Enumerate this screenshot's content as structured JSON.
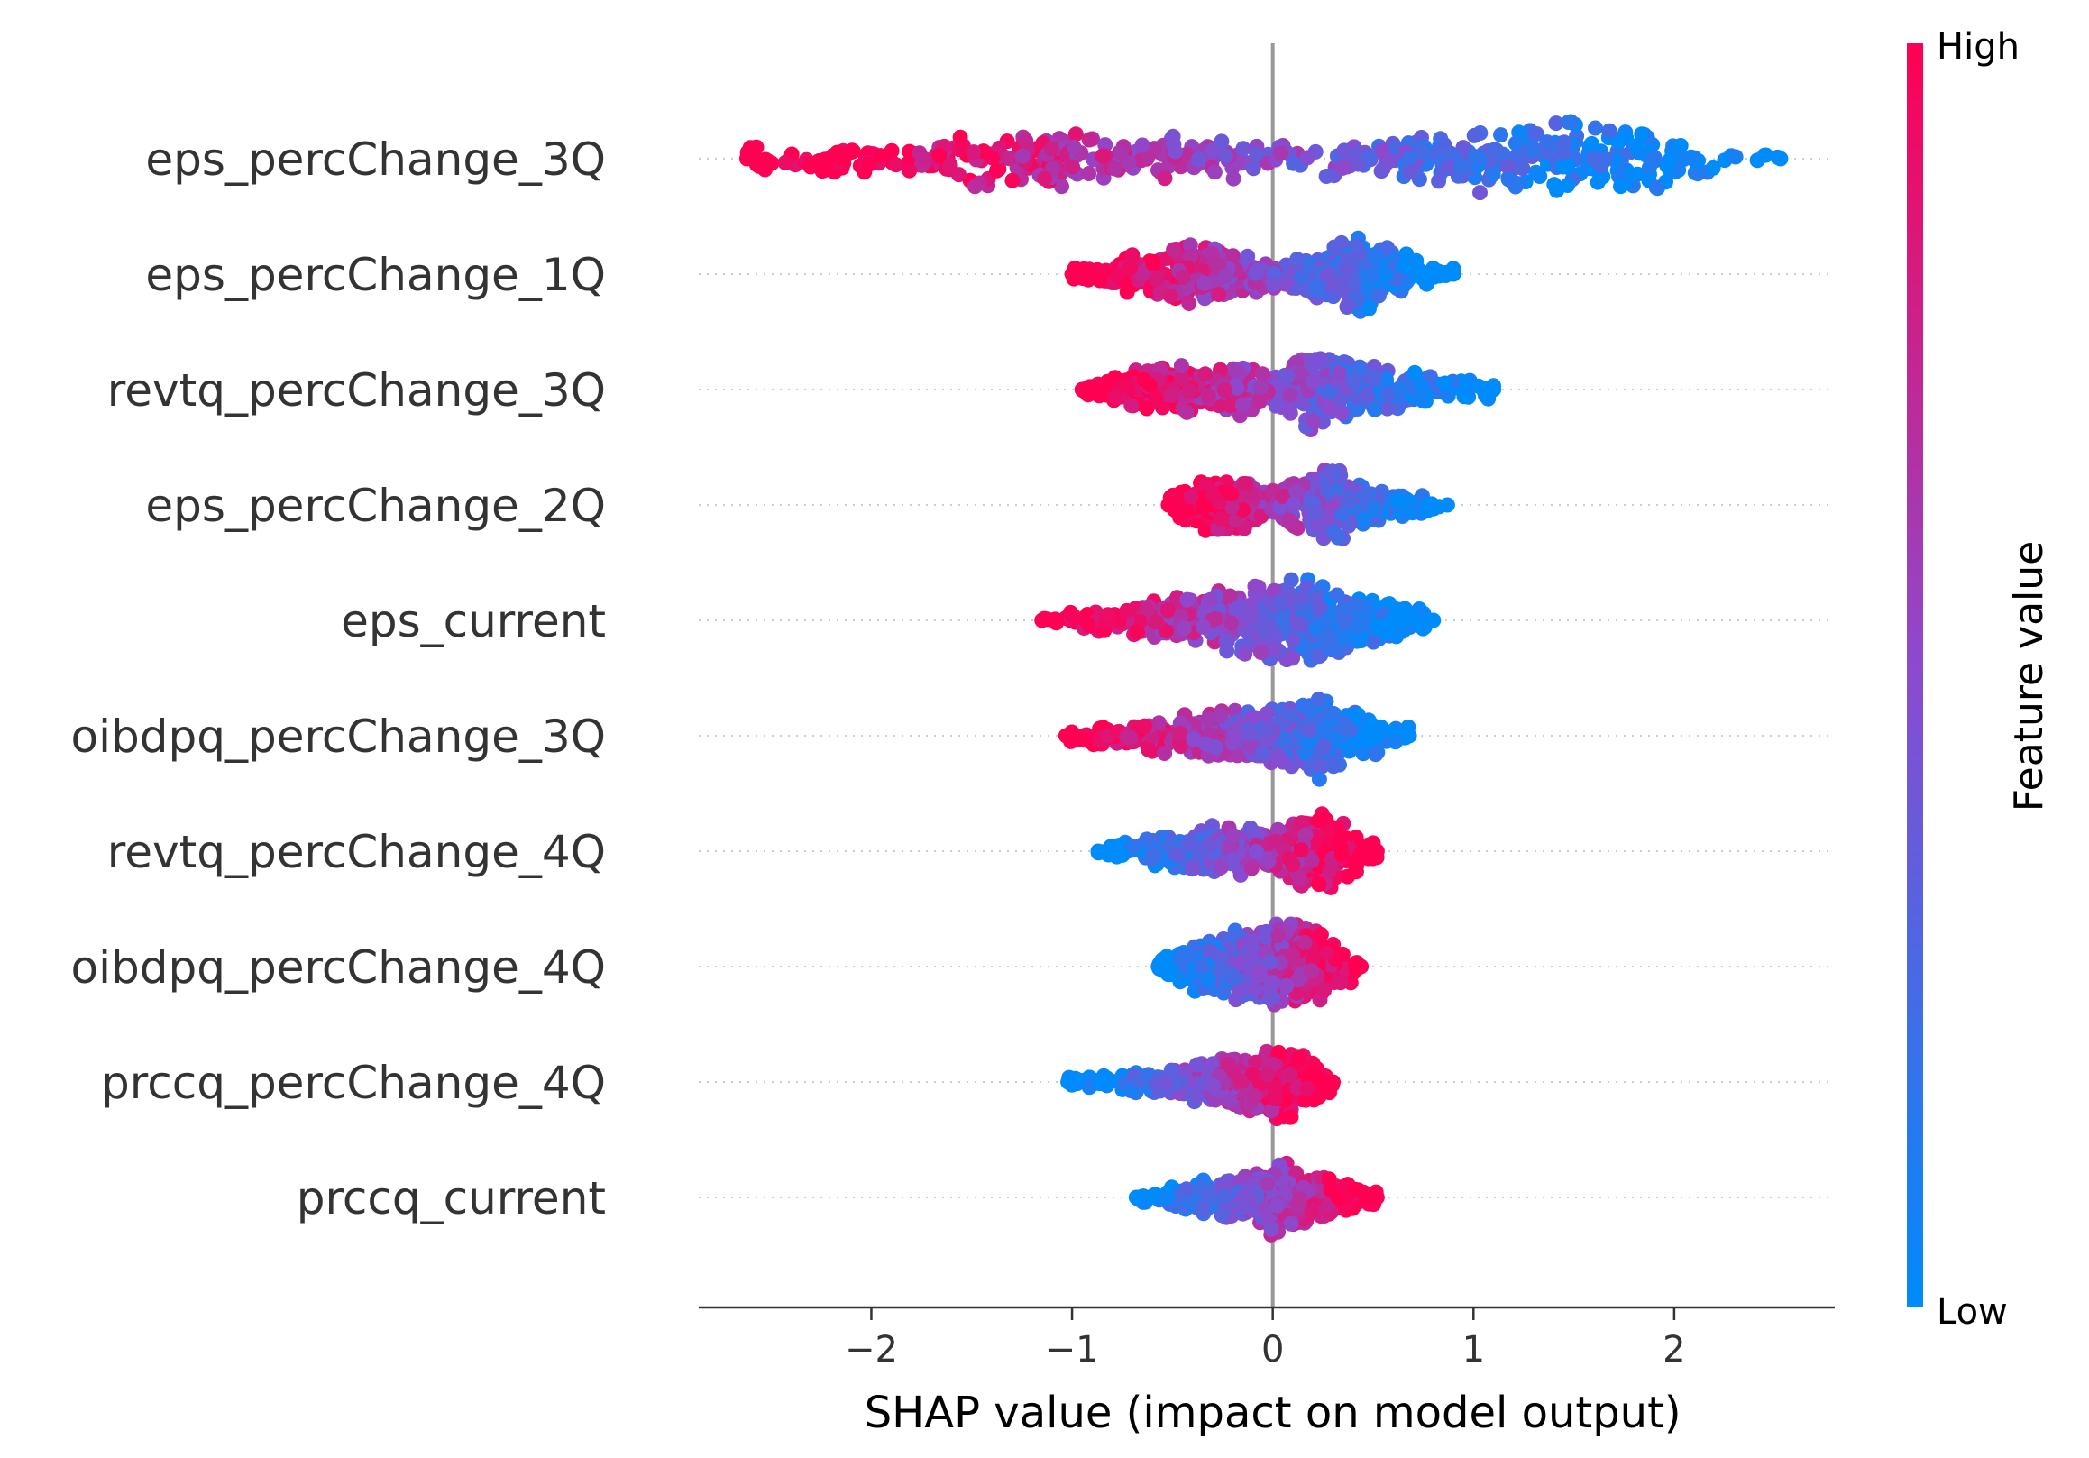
{
  "chart_data": {
    "type": "scatter",
    "subtype": "shap-beeswarm-summary",
    "xlabel": "SHAP value (impact on model output)",
    "xlim": [
      -2.86,
      2.8
    ],
    "xticks": [
      -2,
      -1,
      0,
      1,
      2
    ],
    "xtick_labels": [
      "−2",
      "−1",
      "0",
      "1",
      "2"
    ],
    "zero_line": true,
    "colorbar": {
      "label": "Feature value",
      "high_label": "High",
      "low_label": "Low",
      "high_color": "#ff0052",
      "mid_color": "#8a4bd0",
      "low_color": "#008bfb"
    },
    "features": [
      {
        "name": "eps_percChange_3Q",
        "min": -2.62,
        "max": 2.53,
        "neg_high": true,
        "mass": [
          [
            -2.4,
            0.3
          ],
          [
            -1.6,
            0.6
          ],
          [
            -1.1,
            0.75
          ],
          [
            -0.4,
            0.55
          ],
          [
            0.0,
            0.45
          ],
          [
            0.6,
            0.55
          ],
          [
            1.0,
            0.75
          ],
          [
            1.4,
            1.0
          ],
          [
            1.8,
            0.8
          ],
          [
            2.2,
            0.4
          ],
          [
            2.5,
            0.12
          ]
        ]
      },
      {
        "name": "eps_percChange_1Q",
        "min": -1.0,
        "max": 0.9,
        "neg_high": true,
        "mass": [
          [
            -0.9,
            0.2
          ],
          [
            -0.6,
            0.6
          ],
          [
            -0.5,
            0.75
          ],
          [
            -0.2,
            0.6
          ],
          [
            0.05,
            0.3
          ],
          [
            0.25,
            0.7
          ],
          [
            0.45,
            1.0
          ],
          [
            0.6,
            0.6
          ],
          [
            0.8,
            0.25
          ]
        ]
      },
      {
        "name": "revtq_percChange_3Q",
        "min": -0.95,
        "max": 1.1,
        "neg_high": true,
        "mass": [
          [
            -0.9,
            0.25
          ],
          [
            -0.55,
            0.5
          ],
          [
            -0.2,
            0.6
          ],
          [
            0.0,
            0.35
          ],
          [
            0.2,
            0.9
          ],
          [
            0.45,
            0.6
          ],
          [
            0.7,
            0.4
          ],
          [
            1.0,
            0.2
          ]
        ]
      },
      {
        "name": "eps_percChange_2Q",
        "min": -0.52,
        "max": 0.87,
        "neg_high": true,
        "mass": [
          [
            -0.5,
            0.25
          ],
          [
            -0.3,
            0.7
          ],
          [
            -0.15,
            0.65
          ],
          [
            0.0,
            0.35
          ],
          [
            0.2,
            0.75
          ],
          [
            0.3,
            1.0
          ],
          [
            0.45,
            0.5
          ],
          [
            0.7,
            0.3
          ],
          [
            0.85,
            0.15
          ]
        ]
      },
      {
        "name": "eps_current",
        "min": -1.15,
        "max": 0.8,
        "neg_high": true,
        "mass": [
          [
            -1.1,
            0.12
          ],
          [
            -0.8,
            0.3
          ],
          [
            -0.45,
            0.45
          ],
          [
            -0.2,
            0.6
          ],
          [
            0.0,
            0.8
          ],
          [
            0.2,
            0.8
          ],
          [
            0.4,
            0.55
          ],
          [
            0.6,
            0.35
          ],
          [
            0.8,
            0.15
          ]
        ]
      },
      {
        "name": "oibdpq_percChange_3Q",
        "min": -1.03,
        "max": 0.68,
        "neg_high": true,
        "mass": [
          [
            -1.0,
            0.15
          ],
          [
            -0.7,
            0.3
          ],
          [
            -0.4,
            0.45
          ],
          [
            -0.15,
            0.6
          ],
          [
            0.0,
            0.7
          ],
          [
            0.25,
            0.9
          ],
          [
            0.4,
            0.55
          ],
          [
            0.6,
            0.25
          ]
        ]
      },
      {
        "name": "revtq_percChange_4Q",
        "min": -0.87,
        "max": 0.52,
        "neg_high": false,
        "mass": [
          [
            -0.85,
            0.1
          ],
          [
            -0.55,
            0.35
          ],
          [
            -0.3,
            0.55
          ],
          [
            -0.1,
            0.55
          ],
          [
            0.0,
            0.4
          ],
          [
            0.15,
            0.8
          ],
          [
            0.25,
            0.9
          ],
          [
            0.4,
            0.5
          ],
          [
            0.5,
            0.2
          ]
        ]
      },
      {
        "name": "oibdpq_percChange_4Q",
        "min": -0.57,
        "max": 0.44,
        "neg_high": false,
        "mass": [
          [
            -0.55,
            0.2
          ],
          [
            -0.3,
            0.7
          ],
          [
            -0.1,
            0.75
          ],
          [
            0.05,
            0.9
          ],
          [
            0.2,
            0.85
          ],
          [
            0.35,
            0.5
          ],
          [
            0.44,
            0.15
          ]
        ]
      },
      {
        "name": "prccq_percChange_4Q",
        "min": -1.02,
        "max": 0.3,
        "neg_high": false,
        "mass": [
          [
            -1.0,
            0.1
          ],
          [
            -0.6,
            0.25
          ],
          [
            -0.3,
            0.45
          ],
          [
            -0.05,
            0.6
          ],
          [
            0.05,
            0.85
          ],
          [
            0.15,
            0.6
          ],
          [
            0.3,
            0.2
          ]
        ]
      },
      {
        "name": "prccq_current",
        "min": -0.68,
        "max": 0.52,
        "neg_high": false,
        "mass": [
          [
            -0.67,
            0.1
          ],
          [
            -0.35,
            0.35
          ],
          [
            -0.1,
            0.5
          ],
          [
            0.0,
            0.85
          ],
          [
            0.1,
            0.6
          ],
          [
            0.3,
            0.4
          ],
          [
            0.5,
            0.15
          ]
        ]
      }
    ]
  }
}
